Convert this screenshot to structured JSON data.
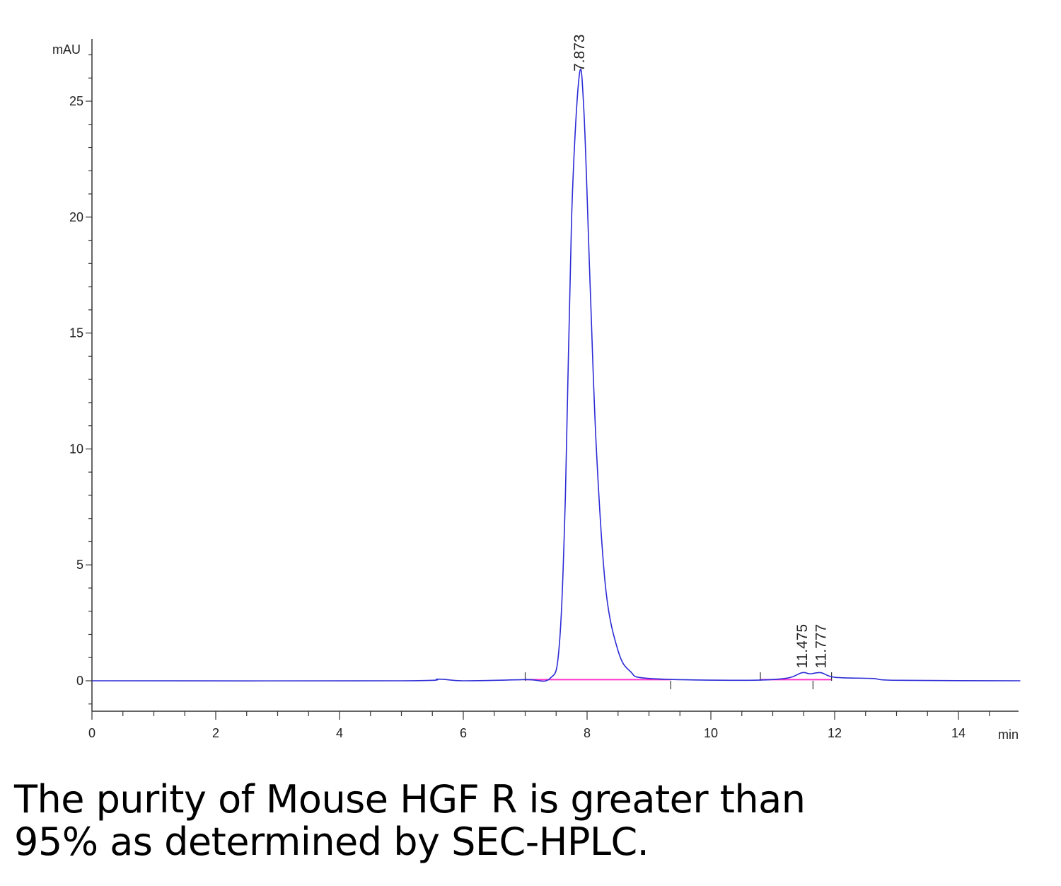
{
  "chart_data": {
    "type": "line",
    "title": "",
    "xlabel": "min",
    "ylabel": "mAU",
    "xlim": [
      0,
      15
    ],
    "ylim": [
      -1.3,
      27.5
    ],
    "x_ticks": [
      0,
      2,
      4,
      6,
      8,
      10,
      12,
      14
    ],
    "y_ticks": [
      0,
      5,
      10,
      15,
      20,
      25
    ],
    "grid": false,
    "legend": "none",
    "series": [
      {
        "color": "#2b2bd6",
        "points": [
          [
            0,
            0
          ],
          [
            5.0,
            0
          ],
          [
            5.6,
            0.07
          ],
          [
            6.0,
            0
          ],
          [
            7.0,
            0.05
          ],
          [
            7.4,
            0.1
          ],
          [
            7.55,
            1.5
          ],
          [
            7.65,
            8.0
          ],
          [
            7.75,
            20.0
          ],
          [
            7.873,
            26.1
          ],
          [
            7.95,
            24.5
          ],
          [
            8.05,
            17.0
          ],
          [
            8.15,
            10.0
          ],
          [
            8.3,
            4.0
          ],
          [
            8.5,
            1.3
          ],
          [
            8.7,
            0.4
          ],
          [
            9.0,
            0.1
          ],
          [
            10.5,
            0.02
          ],
          [
            11.2,
            0.1
          ],
          [
            11.475,
            0.35
          ],
          [
            11.6,
            0.3
          ],
          [
            11.777,
            0.35
          ],
          [
            12.0,
            0.15
          ],
          [
            12.6,
            0.1
          ],
          [
            13.0,
            0.02
          ],
          [
            15.0,
            0
          ]
        ]
      }
    ],
    "peaks": [
      {
        "label": "7.873",
        "x": 7.873,
        "y": 26.1
      },
      {
        "label": "11.475",
        "x": 11.475,
        "y": 0.35
      },
      {
        "label": "11.777",
        "x": 11.777,
        "y": 0.35
      }
    ],
    "baselines": [
      {
        "color": "#ff33cc",
        "from": [
          7.0,
          0.05
        ],
        "to": [
          9.35,
          0.05
        ]
      },
      {
        "color": "#ff33cc",
        "from": [
          10.8,
          0.05
        ],
        "to": [
          11.95,
          0.05
        ]
      }
    ],
    "integration_marks": [
      7.0,
      9.35,
      10.8,
      11.65,
      11.95
    ]
  },
  "caption": {
    "line1": "The purity of Mouse HGF R is greater than",
    "line2": "95% as determined by SEC-HPLC."
  }
}
